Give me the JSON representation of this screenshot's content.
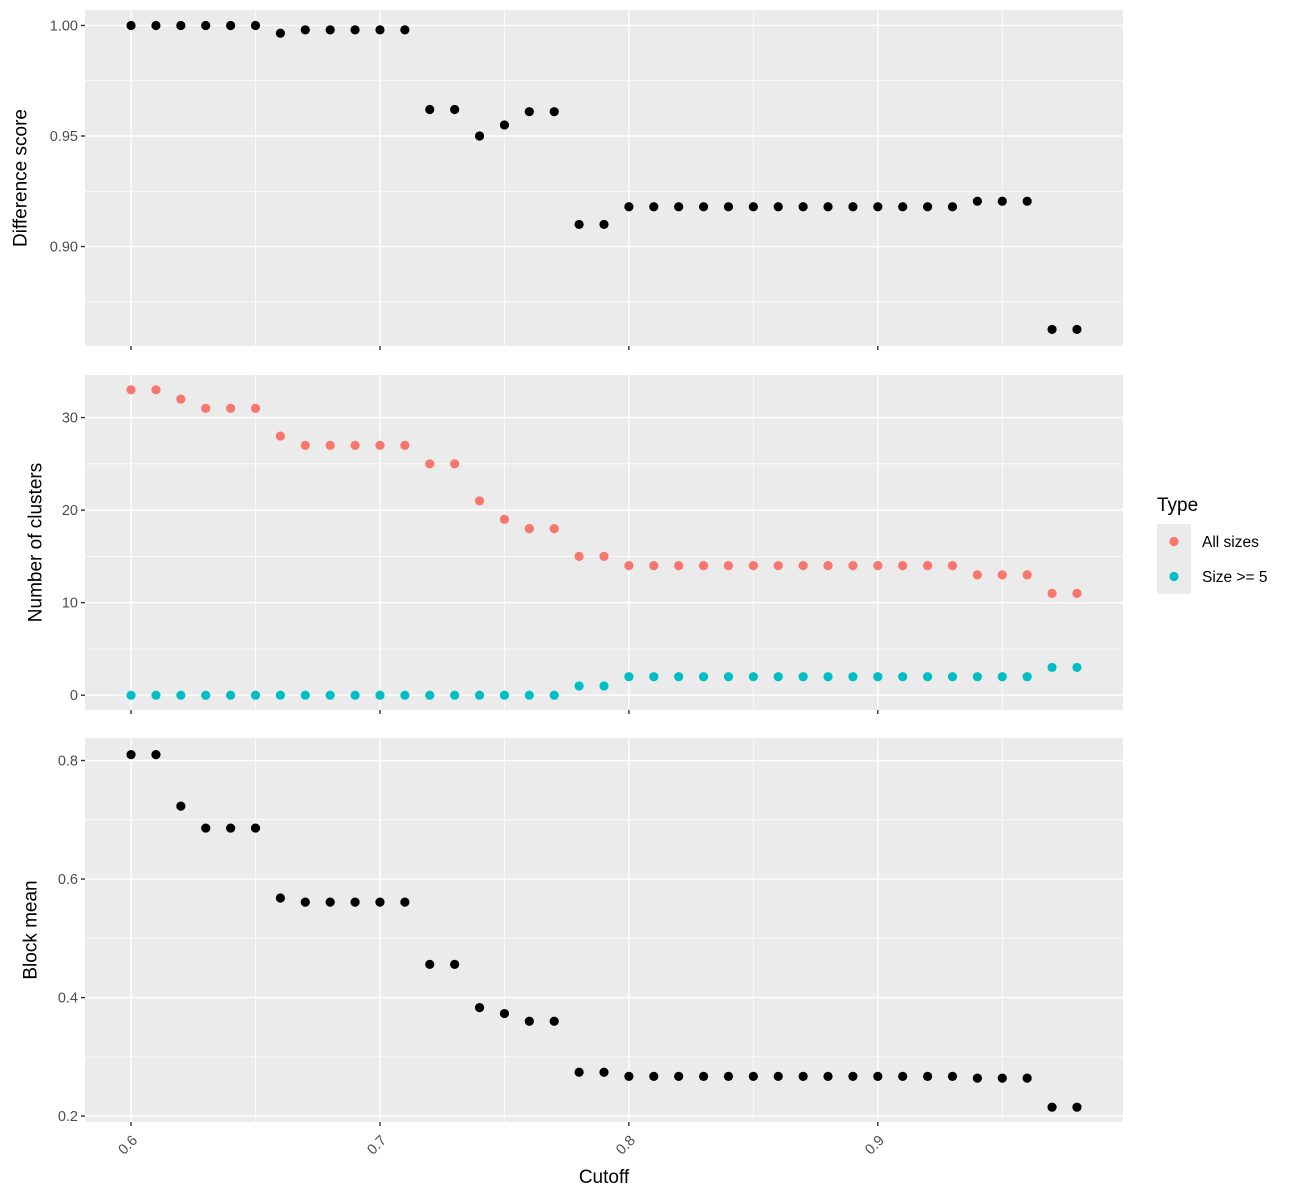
{
  "chart_data": [
    {
      "type": "scatter",
      "panel": "difference",
      "ylabel": "Difference score",
      "xlabel": "",
      "ylim": [
        0.855,
        1.007
      ],
      "y_ticks": [
        0.9,
        0.95,
        1.0
      ],
      "y_tick_labels": [
        "0.90",
        "0.95",
        "1.00"
      ],
      "x_ticks": [
        0.6,
        0.7,
        0.8,
        0.9
      ],
      "grid": true,
      "series": [
        {
          "color": "#000000",
          "x": [
            0.6,
            0.61,
            0.62,
            0.63,
            0.64,
            0.65,
            0.66,
            0.67,
            0.68,
            0.69,
            0.7,
            0.71,
            0.72,
            0.73,
            0.74,
            0.75,
            0.76,
            0.77,
            0.78,
            0.79,
            0.8,
            0.81,
            0.82,
            0.83,
            0.84,
            0.85,
            0.86,
            0.87,
            0.88,
            0.89,
            0.9,
            0.91,
            0.92,
            0.93,
            0.94,
            0.95,
            0.96,
            0.97,
            0.98
          ],
          "y": [
            1.0,
            1.0,
            1.0,
            1.0,
            1.0,
            1.0,
            0.9965,
            0.998,
            0.998,
            0.998,
            0.998,
            0.998,
            0.962,
            0.962,
            0.95,
            0.955,
            0.961,
            0.961,
            0.91,
            0.91,
            0.918,
            0.918,
            0.918,
            0.918,
            0.918,
            0.918,
            0.918,
            0.918,
            0.918,
            0.918,
            0.918,
            0.918,
            0.918,
            0.918,
            0.9205,
            0.9205,
            0.9205,
            0.8625,
            0.8625
          ]
        }
      ]
    },
    {
      "type": "scatter",
      "panel": "clusters",
      "ylabel": "Number of clusters",
      "xlabel": "",
      "ylim": [
        -1.6,
        34.6
      ],
      "y_ticks": [
        0,
        10,
        20,
        30
      ],
      "y_tick_labels": [
        "0",
        "10",
        "20",
        "30"
      ],
      "x_ticks": [
        0.6,
        0.7,
        0.8,
        0.9
      ],
      "grid": true,
      "legend": {
        "title": "Type",
        "position": "right"
      },
      "series": [
        {
          "name": "All sizes",
          "color": "#F8766D",
          "x": [
            0.6,
            0.61,
            0.62,
            0.63,
            0.64,
            0.65,
            0.66,
            0.67,
            0.68,
            0.69,
            0.7,
            0.71,
            0.72,
            0.73,
            0.74,
            0.75,
            0.76,
            0.77,
            0.78,
            0.79,
            0.8,
            0.81,
            0.82,
            0.83,
            0.84,
            0.85,
            0.86,
            0.87,
            0.88,
            0.89,
            0.9,
            0.91,
            0.92,
            0.93,
            0.94,
            0.95,
            0.96,
            0.97,
            0.98
          ],
          "y": [
            33,
            33,
            32,
            31,
            31,
            31,
            28,
            27,
            27,
            27,
            27,
            27,
            25,
            25,
            21,
            19,
            18,
            18,
            15,
            15,
            14,
            14,
            14,
            14,
            14,
            14,
            14,
            14,
            14,
            14,
            14,
            14,
            14,
            14,
            13,
            13,
            13,
            11,
            11
          ]
        },
        {
          "name": "Size >= 5",
          "color": "#00BFC4",
          "x": [
            0.6,
            0.61,
            0.62,
            0.63,
            0.64,
            0.65,
            0.66,
            0.67,
            0.68,
            0.69,
            0.7,
            0.71,
            0.72,
            0.73,
            0.74,
            0.75,
            0.76,
            0.77,
            0.78,
            0.79,
            0.8,
            0.81,
            0.82,
            0.83,
            0.84,
            0.85,
            0.86,
            0.87,
            0.88,
            0.89,
            0.9,
            0.91,
            0.92,
            0.93,
            0.94,
            0.95,
            0.96,
            0.97,
            0.98
          ],
          "y": [
            0,
            0,
            0,
            0,
            0,
            0,
            0,
            0,
            0,
            0,
            0,
            0,
            0,
            0,
            0,
            0,
            0,
            0,
            1,
            1,
            2,
            2,
            2,
            2,
            2,
            2,
            2,
            2,
            2,
            2,
            2,
            2,
            2,
            2,
            2,
            2,
            2,
            3,
            3
          ]
        }
      ]
    },
    {
      "type": "scatter",
      "panel": "blockmean",
      "ylabel": "Block mean",
      "xlabel": "Cutoff",
      "ylim": [
        0.19,
        0.838
      ],
      "y_ticks": [
        0.2,
        0.4,
        0.6,
        0.8
      ],
      "y_tick_labels": [
        "0.2",
        "0.4",
        "0.6",
        "0.8"
      ],
      "x_ticks": [
        0.6,
        0.7,
        0.8,
        0.9
      ],
      "x_tick_labels": [
        "0.6",
        "0.7",
        "0.8",
        "0.9"
      ],
      "grid": true,
      "series": [
        {
          "color": "#000000",
          "x": [
            0.6,
            0.61,
            0.62,
            0.63,
            0.64,
            0.65,
            0.66,
            0.67,
            0.68,
            0.69,
            0.7,
            0.71,
            0.72,
            0.73,
            0.74,
            0.75,
            0.76,
            0.77,
            0.78,
            0.79,
            0.8,
            0.81,
            0.82,
            0.83,
            0.84,
            0.85,
            0.86,
            0.87,
            0.88,
            0.89,
            0.9,
            0.91,
            0.92,
            0.93,
            0.94,
            0.95,
            0.96,
            0.97,
            0.98
          ],
          "y": [
            0.81,
            0.81,
            0.723,
            0.686,
            0.686,
            0.686,
            0.568,
            0.561,
            0.561,
            0.561,
            0.561,
            0.561,
            0.456,
            0.456,
            0.383,
            0.373,
            0.36,
            0.36,
            0.274,
            0.274,
            0.267,
            0.267,
            0.267,
            0.267,
            0.267,
            0.267,
            0.267,
            0.267,
            0.267,
            0.267,
            0.267,
            0.267,
            0.267,
            0.267,
            0.264,
            0.264,
            0.264,
            0.215,
            0.215
          ]
        }
      ]
    }
  ]
}
